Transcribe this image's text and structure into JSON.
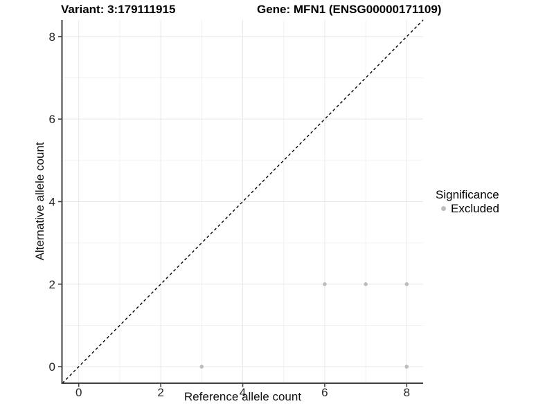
{
  "chart_data": {
    "type": "scatter",
    "titles": {
      "variant": "Variant: 3:179111915",
      "gene": "Gene: MFN1 (ENSG00000171109)"
    },
    "xlabel": "Reference allele count",
    "ylabel": "Alternative allele count",
    "xlim": [
      -0.4,
      8.4
    ],
    "ylim": [
      -0.4,
      8.4
    ],
    "x_ticks": [
      0,
      2,
      4,
      6,
      8
    ],
    "y_ticks": [
      0,
      2,
      4,
      6,
      8
    ],
    "minor_gridlines": [
      1,
      3,
      5,
      7
    ],
    "grid": "on",
    "identity_line": {
      "style": "dashed",
      "equation": "y = x",
      "color": "#000000"
    },
    "series": [
      {
        "name": "Excluded",
        "color": "#bdbdbd",
        "points": [
          {
            "x": 3,
            "y": 0
          },
          {
            "x": 6,
            "y": 2
          },
          {
            "x": 7,
            "y": 2
          },
          {
            "x": 8,
            "y": 0
          },
          {
            "x": 8,
            "y": 2
          }
        ]
      }
    ],
    "legend": {
      "title": "Significance",
      "position": "right",
      "entries": [
        {
          "label": "Excluded",
          "color": "#bdbdbd"
        }
      ]
    }
  },
  "colors": {
    "background": "#ffffff",
    "grid_major": "#e8e8e8",
    "grid_minor": "#f2f2f2",
    "axis_line": "#404040",
    "tick_text": "#262626",
    "point": "#bdbdbd",
    "identity_line": "#000000"
  }
}
